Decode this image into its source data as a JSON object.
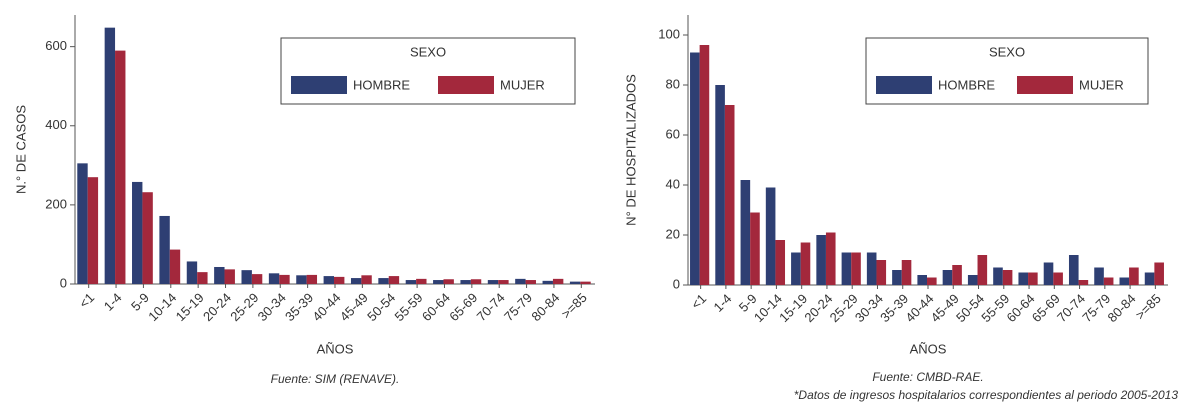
{
  "chart_data": [
    {
      "type": "bar",
      "y_label": "N.° DE CASOS",
      "x_label": "AÑOS",
      "source": "Fuente: SIM (RENAVE).",
      "legend_title": "SEXO",
      "legend": "upper right",
      "categories": [
        "<1",
        "1-4",
        "5-9",
        "10-14",
        "15-19",
        "20-24",
        "25-29",
        "30-34",
        "35-39",
        "40-44",
        "45-49",
        "50-54",
        "55-59",
        "60-64",
        "65-69",
        "70-74",
        "75-79",
        "80-84",
        ">=85"
      ],
      "series": [
        {
          "name": "HOMBRE",
          "color": "#2e3f73",
          "values": [
            305,
            648,
            258,
            172,
            57,
            43,
            35,
            27,
            22,
            20,
            15,
            15,
            10,
            10,
            10,
            10,
            13,
            8,
            6
          ]
        },
        {
          "name": "MUJER",
          "color": "#a3283c",
          "values": [
            270,
            590,
            232,
            87,
            30,
            37,
            25,
            23,
            23,
            18,
            22,
            20,
            13,
            12,
            12,
            10,
            10,
            13,
            6
          ]
        }
      ],
      "ylim": [
        0,
        680
      ],
      "yticks": [
        0,
        200,
        400,
        600
      ]
    },
    {
      "type": "bar",
      "y_label": "N° DE HOSPITALIZADOS",
      "x_label": "AÑOS",
      "source": "Fuente: CMBD-RAE.",
      "footnote": "*Datos de ingresos hospitalarios correspondientes al periodo 2005-2013",
      "legend_title": "SEXO",
      "legend": "upper right",
      "categories": [
        "<1",
        "1-4",
        "5-9",
        "10-14",
        "15-19",
        "20-24",
        "25-29",
        "30-34",
        "35-39",
        "40-44",
        "45-49",
        "50-54",
        "55-59",
        "60-64",
        "65-69",
        "70-74",
        "75-79",
        "80-84",
        ">=85"
      ],
      "series": [
        {
          "name": "HOMBRE",
          "color": "#2e3f73",
          "values": [
            93,
            80,
            42,
            39,
            13,
            20,
            13,
            13,
            6,
            4,
            6,
            4,
            7,
            5,
            9,
            12,
            7,
            3,
            5
          ]
        },
        {
          "name": "MUJER",
          "color": "#a3283c",
          "values": [
            96,
            72,
            29,
            18,
            17,
            21,
            13,
            10,
            10,
            3,
            8,
            12,
            6,
            5,
            5,
            2,
            3,
            7,
            9
          ]
        }
      ],
      "ylim": [
        0,
        108
      ],
      "yticks": [
        0,
        20,
        40,
        60,
        80,
        100
      ]
    }
  ]
}
